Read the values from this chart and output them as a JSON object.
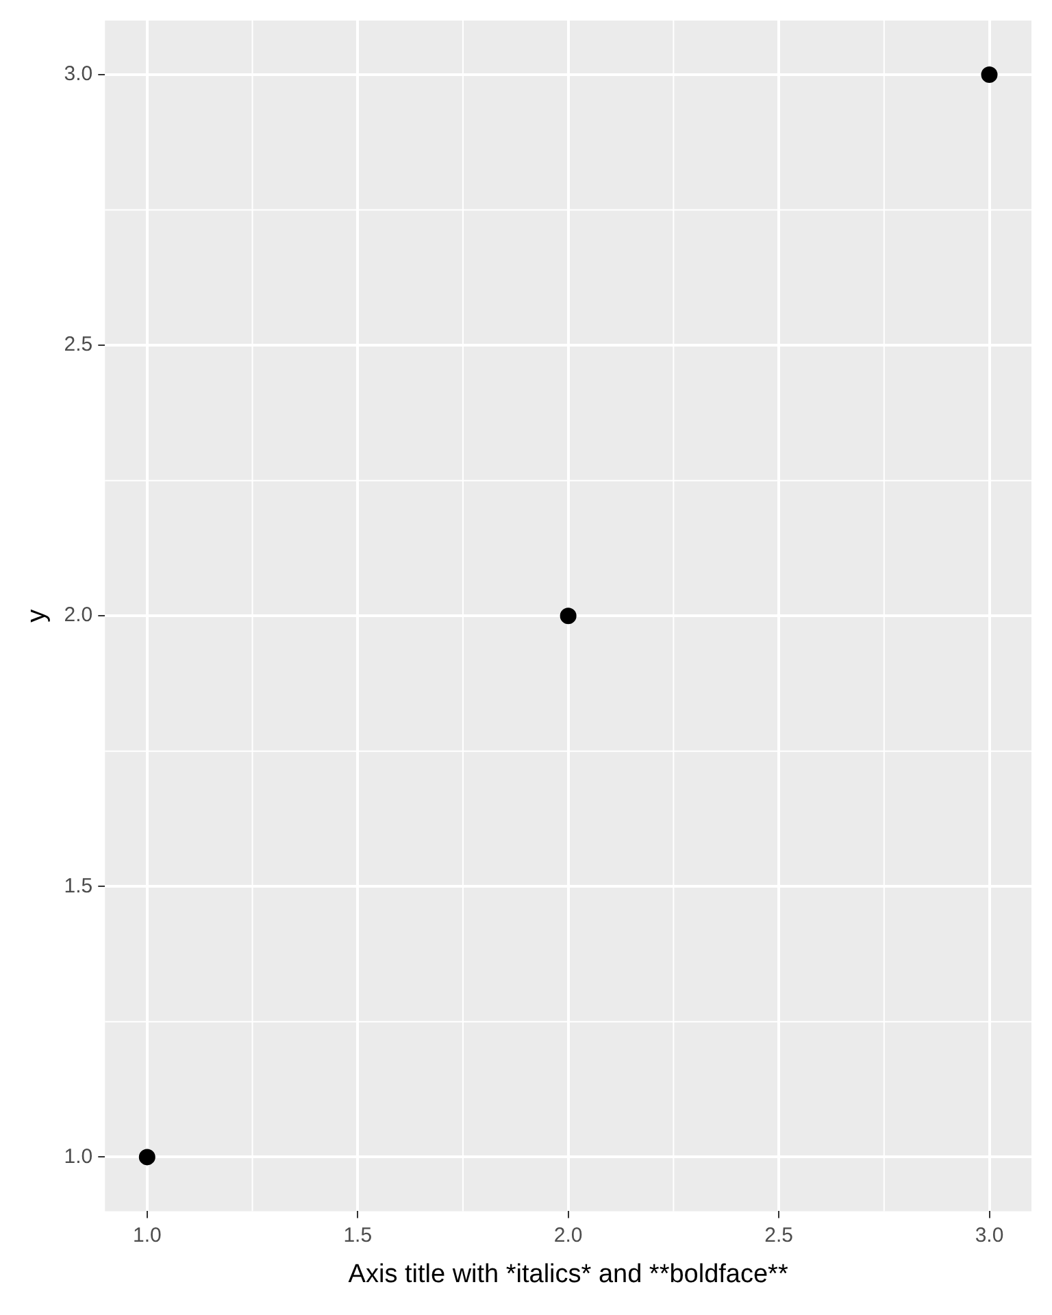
{
  "chart_data": {
    "type": "scatter",
    "xlabel": "Axis title with *italics* and **boldface**",
    "ylabel": "y",
    "x": [
      1,
      2,
      3
    ],
    "series": [
      {
        "color": "#000000",
        "values": [
          1,
          2,
          3
        ]
      }
    ],
    "xlim": [
      0.9,
      3.1
    ],
    "ylim": [
      0.9,
      3.1
    ],
    "xticks": [
      {
        "value": 1,
        "label": "1.0"
      },
      {
        "value": 1.5,
        "label": "1.5"
      },
      {
        "value": 2,
        "label": "2.0"
      },
      {
        "value": 2.5,
        "label": "2.5"
      },
      {
        "value": 3,
        "label": "3.0"
      }
    ],
    "yticks": [
      {
        "value": 1,
        "label": "1.0"
      },
      {
        "value": 1.5,
        "label": "1.5"
      },
      {
        "value": 2,
        "label": "2.0"
      },
      {
        "value": 2.5,
        "label": "2.5"
      },
      {
        "value": 3,
        "label": "3.0"
      }
    ],
    "grid": true,
    "legend": false,
    "marker": "circle"
  }
}
